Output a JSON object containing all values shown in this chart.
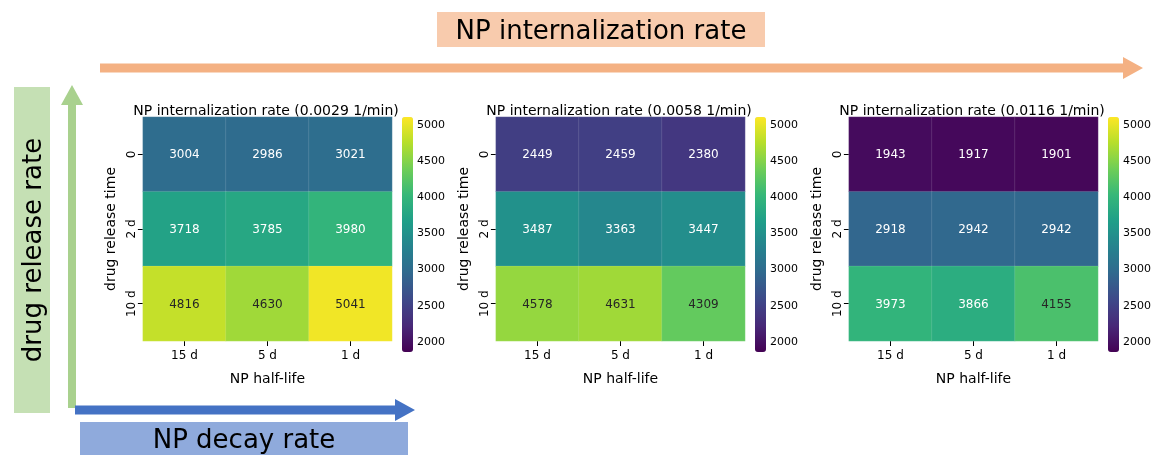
{
  "chart_data": [
    {
      "type": "heatmap",
      "title": "NP internalization rate (0.0029 1/min)",
      "xlabel": "NP half-life",
      "ylabel": "drug release time",
      "categories": [
        "15 d",
        "5 d",
        "1 d"
      ],
      "y_categories": [
        "0",
        "2 d",
        "10 d"
      ],
      "cells": [
        [
          3004,
          2986,
          3021
        ],
        [
          3718,
          3785,
          3980
        ],
        [
          4816,
          4630,
          5041
        ]
      ],
      "data_labels": true,
      "clim": [
        1850,
        5100
      ],
      "cticks": [
        2000,
        2500,
        3000,
        3500,
        4000,
        4500,
        5000
      ],
      "annotations": [
        "NP internalization rate",
        "drug release rate",
        "NP decay rate"
      ]
    },
    {
      "type": "heatmap",
      "title": "NP internalization rate (0.0058 1/min)",
      "xlabel": "NP half-life",
      "ylabel": "drug release time",
      "categories": [
        "15 d",
        "5 d",
        "1 d"
      ],
      "y_categories": [
        "0",
        "2 d",
        "10 d"
      ],
      "cells": [
        [
          2449,
          2459,
          2380
        ],
        [
          3487,
          3363,
          3447
        ],
        [
          4578,
          4631,
          4309
        ]
      ],
      "data_labels": true,
      "clim": [
        1850,
        5100
      ],
      "cticks": [
        2000,
        2500,
        3000,
        3500,
        4000,
        4500,
        5000
      ]
    },
    {
      "type": "heatmap",
      "title": "NP internalization rate (0.0116 1/min)",
      "xlabel": "NP half-life",
      "ylabel": "drug release time",
      "categories": [
        "15 d",
        "5 d",
        "1 d"
      ],
      "y_categories": [
        "0",
        "2 d",
        "10 d"
      ],
      "cells": [
        [
          1943,
          1917,
          1901
        ],
        [
          2918,
          2942,
          2942
        ],
        [
          3973,
          3866,
          4155
        ]
      ],
      "data_labels": true,
      "clim": [
        1850,
        5100
      ],
      "cticks": [
        2000,
        2500,
        3000,
        3500,
        4000,
        4500,
        5000
      ]
    }
  ]
}
